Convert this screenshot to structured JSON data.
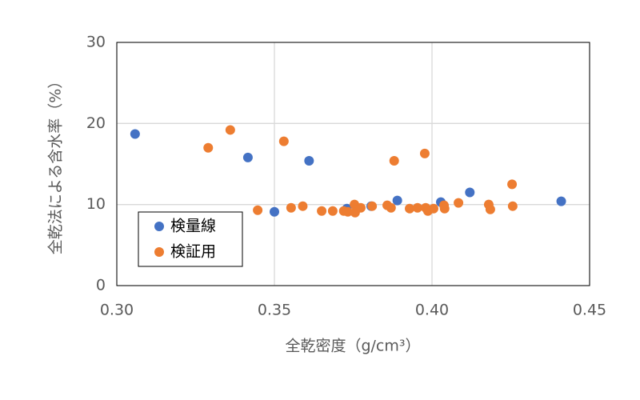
{
  "chart_data": {
    "type": "scatter",
    "xlabel": "全乾密度（g/cm³）",
    "ylabel": "全乾法による含水率（%）",
    "xlim": [
      0.3,
      0.45
    ],
    "xticks": [
      {
        "value": 0.3,
        "label": "0.30"
      },
      0.35,
      {
        "value": 0.4,
        "label": "0.40"
      },
      0.45
    ],
    "ylim": [
      0,
      30
    ],
    "yticks": [
      0,
      10,
      20,
      30
    ],
    "grid": true,
    "legend": "lower left",
    "series": [
      {
        "name": "検量線",
        "color": "#4472c4",
        "x": [
          0.3058,
          0.3416,
          0.35,
          0.361,
          0.373,
          0.3807,
          0.389,
          0.4028,
          0.412,
          0.441
        ],
        "values": [
          18.7,
          15.8,
          9.1,
          15.4,
          9.5,
          9.8,
          10.5,
          10.3,
          11.5,
          10.4
        ]
      },
      {
        "name": "検証用",
        "color": "#ed7d31",
        "x": [
          0.329,
          0.336,
          0.3447,
          0.353,
          0.3553,
          0.359,
          0.365,
          0.3685,
          0.372,
          0.3733,
          0.3754,
          0.3756,
          0.3774,
          0.381,
          0.3858,
          0.387,
          0.388,
          0.3929,
          0.3954,
          0.3977,
          0.398,
          0.3987,
          0.4005,
          0.4038,
          0.404,
          0.4084,
          0.418,
          0.4185,
          0.4254,
          0.4256
        ],
        "values": [
          17.0,
          19.2,
          9.3,
          17.8,
          9.6,
          9.8,
          9.2,
          9.2,
          9.2,
          9.1,
          10.0,
          9.0,
          9.6,
          9.8,
          9.9,
          9.6,
          15.4,
          9.5,
          9.6,
          16.3,
          9.6,
          9.2,
          9.5,
          9.9,
          9.5,
          10.2,
          10.0,
          9.4,
          12.5,
          9.8
        ]
      }
    ]
  }
}
